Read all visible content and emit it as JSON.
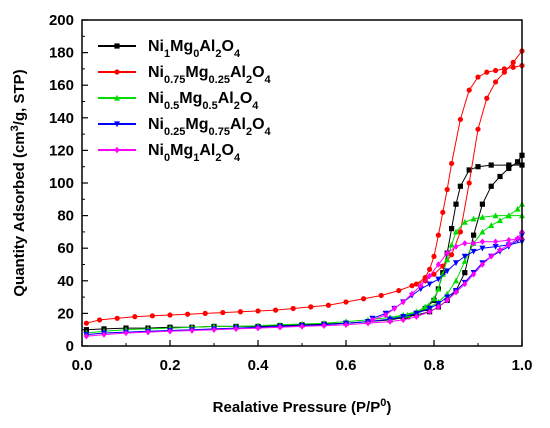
{
  "chart_data": {
    "type": "line",
    "title": "",
    "xlabel": "Realative Pressure (P/P",
    "xlabel_sup": "0",
    "xlabel_end": ")",
    "ylabel": "Quantity Adsorbed (cm",
    "ylabel_sup": "3",
    "ylabel_end": "/g, STP)",
    "xlim": [
      0.0,
      1.0
    ],
    "ylim": [
      0,
      200
    ],
    "xticks": [
      "0.0",
      "0.2",
      "0.4",
      "0.6",
      "0.8",
      "1.0"
    ],
    "yticks": [
      "0",
      "20",
      "40",
      "60",
      "80",
      "100",
      "120",
      "140",
      "160",
      "180",
      "200"
    ],
    "grid": false,
    "legend_position": "top-left",
    "series": [
      {
        "name_parts": [
          [
            "Ni",
            ""
          ],
          [
            "1",
            "sub"
          ],
          [
            "Mg",
            ""
          ],
          [
            "0",
            "sub"
          ],
          [
            "Al",
            ""
          ],
          [
            "2",
            "sub"
          ],
          [
            "O",
            ""
          ],
          [
            "4",
            "sub"
          ]
        ],
        "color": "#000000",
        "marker": "square",
        "adsorption": [
          [
            0.01,
            10
          ],
          [
            0.05,
            10.5
          ],
          [
            0.1,
            11
          ],
          [
            0.15,
            11
          ],
          [
            0.2,
            11.5
          ],
          [
            0.25,
            11.5
          ],
          [
            0.3,
            12
          ],
          [
            0.35,
            12
          ],
          [
            0.4,
            12
          ],
          [
            0.45,
            12.5
          ],
          [
            0.5,
            13
          ],
          [
            0.55,
            13.5
          ],
          [
            0.6,
            14
          ],
          [
            0.65,
            15
          ],
          [
            0.7,
            16
          ],
          [
            0.73,
            17.5
          ],
          [
            0.76,
            19
          ],
          [
            0.79,
            21
          ],
          [
            0.81,
            24
          ],
          [
            0.83,
            28
          ],
          [
            0.85,
            34
          ],
          [
            0.87,
            45
          ],
          [
            0.89,
            68
          ],
          [
            0.91,
            87
          ],
          [
            0.93,
            98
          ],
          [
            0.95,
            104
          ],
          [
            0.97,
            109
          ],
          [
            0.99,
            113
          ],
          [
            1.0,
            117
          ]
        ],
        "desorption": [
          [
            1.0,
            111
          ],
          [
            0.97,
            111
          ],
          [
            0.93,
            111
          ],
          [
            0.9,
            110
          ],
          [
            0.88,
            108
          ],
          [
            0.86,
            98
          ],
          [
            0.85,
            87
          ],
          [
            0.84,
            72
          ],
          [
            0.83,
            57
          ],
          [
            0.82,
            45
          ],
          [
            0.81,
            35
          ],
          [
            0.8,
            28
          ],
          [
            0.78,
            23
          ],
          [
            0.76,
            20
          ],
          [
            0.74,
            18
          ],
          [
            0.7,
            16
          ]
        ]
      },
      {
        "name_parts": [
          [
            "Ni",
            ""
          ],
          [
            "0.75",
            "sub"
          ],
          [
            "Mg",
            ""
          ],
          [
            "0.25",
            "sub"
          ],
          [
            "Al",
            ""
          ],
          [
            "2",
            "sub"
          ],
          [
            "O",
            ""
          ],
          [
            "4",
            "sub"
          ]
        ],
        "color": "#ff0000",
        "marker": "circle",
        "adsorption": [
          [
            0.01,
            14
          ],
          [
            0.04,
            16
          ],
          [
            0.08,
            17
          ],
          [
            0.12,
            18
          ],
          [
            0.16,
            18.5
          ],
          [
            0.2,
            19
          ],
          [
            0.24,
            19.5
          ],
          [
            0.28,
            20
          ],
          [
            0.32,
            20.5
          ],
          [
            0.36,
            21
          ],
          [
            0.4,
            21.5
          ],
          [
            0.44,
            22
          ],
          [
            0.48,
            23
          ],
          [
            0.52,
            24
          ],
          [
            0.56,
            25
          ],
          [
            0.6,
            27
          ],
          [
            0.64,
            29
          ],
          [
            0.68,
            31
          ],
          [
            0.72,
            34
          ],
          [
            0.75,
            37
          ],
          [
            0.78,
            40
          ],
          [
            0.8,
            44
          ],
          [
            0.82,
            49
          ],
          [
            0.84,
            56
          ],
          [
            0.86,
            70
          ],
          [
            0.88,
            100
          ],
          [
            0.9,
            133
          ],
          [
            0.92,
            152
          ],
          [
            0.94,
            162
          ],
          [
            0.96,
            168
          ],
          [
            0.98,
            174
          ],
          [
            1.0,
            181
          ]
        ],
        "desorption": [
          [
            1.0,
            172
          ],
          [
            0.98,
            171
          ],
          [
            0.96,
            170
          ],
          [
            0.94,
            169
          ],
          [
            0.92,
            168
          ],
          [
            0.9,
            165
          ],
          [
            0.88,
            157
          ],
          [
            0.86,
            139
          ],
          [
            0.84,
            112
          ],
          [
            0.83,
            96
          ],
          [
            0.82,
            82
          ],
          [
            0.81,
            68
          ],
          [
            0.8,
            55
          ],
          [
            0.79,
            47
          ],
          [
            0.78,
            42
          ],
          [
            0.76,
            38
          ]
        ]
      },
      {
        "name_parts": [
          [
            "Ni",
            ""
          ],
          [
            "0.5",
            "sub"
          ],
          [
            "Mg",
            ""
          ],
          [
            "0.5",
            "sub"
          ],
          [
            "Al",
            ""
          ],
          [
            "2",
            "sub"
          ],
          [
            "O",
            ""
          ],
          [
            "4",
            "sub"
          ]
        ],
        "color": "#00dd00",
        "marker": "triangle",
        "adsorption": [
          [
            0.01,
            8
          ],
          [
            0.05,
            9
          ],
          [
            0.1,
            10
          ],
          [
            0.15,
            10.5
          ],
          [
            0.2,
            11
          ],
          [
            0.25,
            11.5
          ],
          [
            0.3,
            12
          ],
          [
            0.35,
            12
          ],
          [
            0.4,
            12.5
          ],
          [
            0.45,
            13
          ],
          [
            0.5,
            13.5
          ],
          [
            0.55,
            14
          ],
          [
            0.6,
            15
          ],
          [
            0.65,
            16
          ],
          [
            0.7,
            17.5
          ],
          [
            0.73,
            19
          ],
          [
            0.76,
            21
          ],
          [
            0.79,
            24
          ],
          [
            0.81,
            27
          ],
          [
            0.83,
            32
          ],
          [
            0.85,
            40
          ],
          [
            0.87,
            52
          ],
          [
            0.89,
            63
          ],
          [
            0.91,
            70
          ],
          [
            0.93,
            74
          ],
          [
            0.95,
            77
          ],
          [
            0.97,
            80
          ],
          [
            0.99,
            84
          ],
          [
            1.0,
            87
          ]
        ],
        "desorption": [
          [
            1.0,
            80
          ],
          [
            0.97,
            80
          ],
          [
            0.94,
            80
          ],
          [
            0.91,
            79
          ],
          [
            0.89,
            78
          ],
          [
            0.87,
            76
          ],
          [
            0.85,
            70
          ],
          [
            0.84,
            62
          ],
          [
            0.83,
            53
          ],
          [
            0.82,
            44
          ],
          [
            0.81,
            35
          ],
          [
            0.8,
            29
          ],
          [
            0.78,
            24
          ],
          [
            0.76,
            21
          ],
          [
            0.74,
            19
          ],
          [
            0.7,
            17
          ]
        ]
      },
      {
        "name_parts": [
          [
            "Ni",
            ""
          ],
          [
            "0.25",
            "sub"
          ],
          [
            "Mg",
            ""
          ],
          [
            "0.75",
            "sub"
          ],
          [
            "Al",
            ""
          ],
          [
            "2",
            "sub"
          ],
          [
            "O",
            ""
          ],
          [
            "4",
            "sub"
          ]
        ],
        "color": "#0000ff",
        "marker": "down-triangle",
        "adsorption": [
          [
            0.01,
            7
          ],
          [
            0.05,
            8
          ],
          [
            0.1,
            8.5
          ],
          [
            0.15,
            9
          ],
          [
            0.2,
            9.5
          ],
          [
            0.25,
            10
          ],
          [
            0.3,
            10.5
          ],
          [
            0.35,
            11
          ],
          [
            0.4,
            11.5
          ],
          [
            0.45,
            12
          ],
          [
            0.5,
            12.5
          ],
          [
            0.55,
            13
          ],
          [
            0.6,
            14
          ],
          [
            0.65,
            15
          ],
          [
            0.7,
            16.5
          ],
          [
            0.73,
            18
          ],
          [
            0.76,
            20
          ],
          [
            0.79,
            23
          ],
          [
            0.81,
            26
          ],
          [
            0.83,
            30
          ],
          [
            0.85,
            34
          ],
          [
            0.87,
            39
          ],
          [
            0.89,
            45
          ],
          [
            0.91,
            51
          ],
          [
            0.93,
            55
          ],
          [
            0.95,
            58
          ],
          [
            0.97,
            61
          ],
          [
            0.99,
            65
          ],
          [
            1.0,
            68
          ]
        ],
        "desorption": [
          [
            1.0,
            64
          ],
          [
            0.97,
            62
          ],
          [
            0.94,
            61
          ],
          [
            0.91,
            60
          ],
          [
            0.89,
            58
          ],
          [
            0.87,
            55
          ],
          [
            0.85,
            51
          ],
          [
            0.83,
            46
          ],
          [
            0.81,
            41
          ],
          [
            0.79,
            38
          ],
          [
            0.77,
            35
          ],
          [
            0.75,
            31
          ],
          [
            0.73,
            27
          ],
          [
            0.71,
            23
          ],
          [
            0.69,
            20
          ],
          [
            0.66,
            17
          ]
        ]
      },
      {
        "name_parts": [
          [
            "Ni",
            ""
          ],
          [
            "0",
            "sub"
          ],
          [
            "Mg",
            ""
          ],
          [
            "1",
            "sub"
          ],
          [
            "Al",
            ""
          ],
          [
            "2",
            "sub"
          ],
          [
            "O",
            ""
          ],
          [
            "4",
            "sub"
          ]
        ],
        "color": "#ff00ff",
        "marker": "diamond",
        "adsorption": [
          [
            0.01,
            6
          ],
          [
            0.05,
            7
          ],
          [
            0.1,
            8
          ],
          [
            0.15,
            8.5
          ],
          [
            0.2,
            9
          ],
          [
            0.25,
            9.5
          ],
          [
            0.3,
            10
          ],
          [
            0.35,
            10.5
          ],
          [
            0.4,
            11
          ],
          [
            0.45,
            11.5
          ],
          [
            0.5,
            12
          ],
          [
            0.55,
            12.5
          ],
          [
            0.6,
            13
          ],
          [
            0.65,
            14
          ],
          [
            0.7,
            15
          ],
          [
            0.73,
            16
          ],
          [
            0.76,
            18
          ],
          [
            0.79,
            21
          ],
          [
            0.81,
            24
          ],
          [
            0.83,
            28
          ],
          [
            0.85,
            33
          ],
          [
            0.87,
            38
          ],
          [
            0.89,
            44
          ],
          [
            0.91,
            50
          ],
          [
            0.93,
            55
          ],
          [
            0.95,
            59
          ],
          [
            0.97,
            62
          ],
          [
            0.99,
            66
          ],
          [
            1.0,
            70
          ]
        ],
        "desorption": [
          [
            1.0,
            66
          ],
          [
            0.97,
            65
          ],
          [
            0.94,
            64
          ],
          [
            0.91,
            64
          ],
          [
            0.89,
            63
          ],
          [
            0.87,
            63
          ],
          [
            0.85,
            61
          ],
          [
            0.83,
            57
          ],
          [
            0.81,
            50
          ],
          [
            0.79,
            43
          ],
          [
            0.77,
            37
          ],
          [
            0.75,
            32
          ],
          [
            0.73,
            27
          ],
          [
            0.71,
            23
          ],
          [
            0.69,
            19
          ],
          [
            0.66,
            16
          ]
        ]
      }
    ]
  }
}
